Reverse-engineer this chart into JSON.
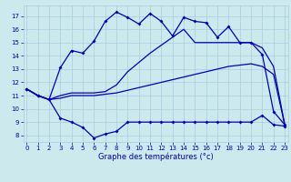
{
  "title": "Graphe des températures (°c)",
  "bg_color": "#cce9ee",
  "grid_color": "#aaccdd",
  "line_color": "#0000bb",
  "x_ticks": [
    0,
    1,
    2,
    3,
    4,
    5,
    6,
    7,
    8,
    9,
    10,
    11,
    12,
    13,
    14,
    15,
    16,
    17,
    18,
    19,
    20,
    21,
    22,
    23
  ],
  "y_ticks": [
    8,
    9,
    10,
    11,
    12,
    13,
    14,
    15,
    16,
    17
  ],
  "ylim": [
    7.5,
    17.8
  ],
  "xlim": [
    -0.3,
    23.3
  ],
  "line1_x": [
    0,
    1,
    2,
    3,
    4,
    5,
    6,
    7,
    8,
    9,
    10,
    11,
    12,
    13,
    14,
    15,
    16,
    17,
    18,
    19,
    20,
    21,
    22,
    23
  ],
  "line1_y": [
    11.5,
    11.0,
    10.7,
    9.3,
    9.0,
    8.6,
    7.8,
    8.1,
    8.3,
    9.0,
    9.0,
    9.0,
    9.0,
    9.0,
    9.0,
    9.0,
    9.0,
    9.0,
    9.0,
    9.0,
    9.0,
    9.5,
    8.8,
    8.7
  ],
  "line2_x": [
    0,
    1,
    2,
    3,
    4,
    5,
    6,
    7,
    8,
    9,
    10,
    11,
    12,
    13,
    14,
    15,
    16,
    17,
    18,
    19,
    20,
    21,
    22,
    23
  ],
  "line2_y": [
    11.5,
    11.0,
    10.7,
    10.8,
    11.0,
    11.0,
    11.0,
    11.1,
    11.2,
    11.4,
    11.6,
    11.8,
    12.0,
    12.2,
    12.4,
    12.6,
    12.8,
    13.0,
    13.2,
    13.3,
    13.4,
    13.2,
    12.6,
    8.8
  ],
  "line3_x": [
    0,
    1,
    2,
    3,
    4,
    5,
    6,
    7,
    8,
    9,
    10,
    11,
    12,
    13,
    14,
    15,
    16,
    17,
    18,
    19,
    20,
    21,
    22,
    23
  ],
  "line3_y": [
    11.5,
    11.0,
    10.7,
    11.0,
    11.2,
    11.2,
    11.2,
    11.3,
    11.8,
    12.8,
    13.5,
    14.2,
    14.8,
    15.4,
    16.0,
    15.0,
    15.0,
    15.0,
    15.0,
    15.0,
    15.0,
    14.6,
    13.2,
    8.8
  ],
  "line4_x": [
    0,
    1,
    2,
    3,
    4,
    5,
    6,
    7,
    8,
    9,
    10,
    11,
    12,
    13,
    14,
    15,
    16,
    17,
    18,
    19,
    20,
    21,
    22,
    23
  ],
  "line4_y": [
    11.5,
    11.0,
    10.7,
    13.1,
    14.4,
    14.2,
    15.1,
    16.6,
    17.3,
    16.9,
    16.4,
    17.2,
    16.6,
    15.5,
    16.9,
    16.6,
    16.5,
    15.4,
    16.2,
    15.0,
    15.0,
    14.1,
    9.8,
    8.8
  ]
}
